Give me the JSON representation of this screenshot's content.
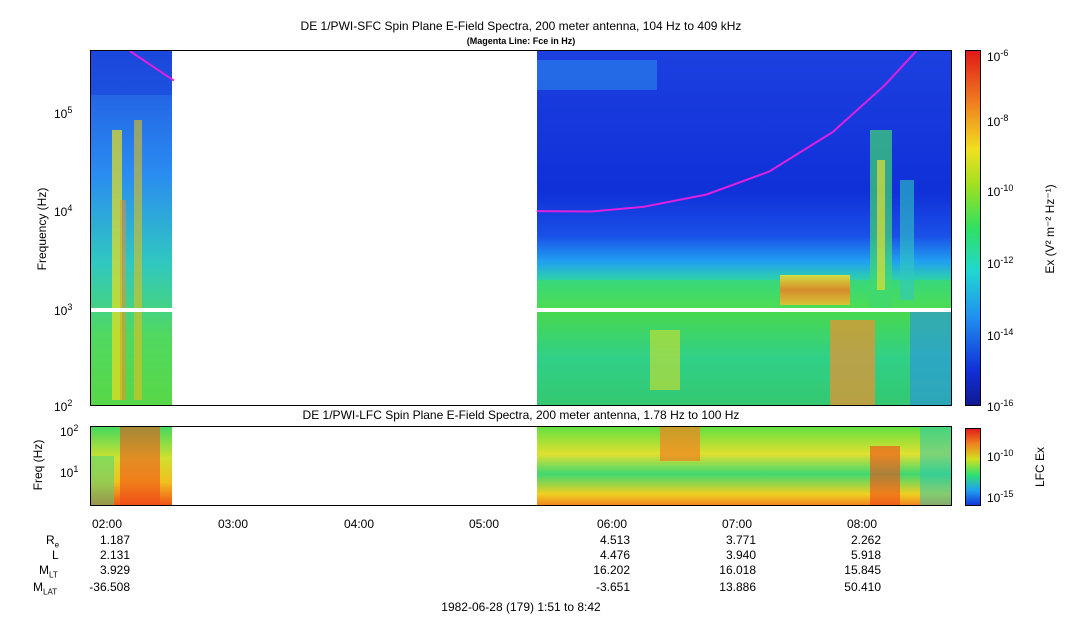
{
  "top_panel": {
    "title": "DE 1/PWI-SFC  Spin Plane E-Field Spectra, 200 meter antenna, 104 Hz to 409 kHz",
    "subtitle": "(Magenta Line: Fce in Hz)",
    "ylabel": "Frequency (Hz)",
    "y_ticks": [
      {
        "base": "10",
        "exp": "2",
        "value": 100
      },
      {
        "base": "10",
        "exp": "3",
        "value": 1000
      },
      {
        "base": "10",
        "exp": "4",
        "value": 10000
      },
      {
        "base": "10",
        "exp": "5",
        "value": 100000
      }
    ],
    "colorbar_label": "Ex (V² m⁻² Hz⁻¹)",
    "colorbar_ticks": [
      {
        "base": "10",
        "exp": "-6"
      },
      {
        "base": "10",
        "exp": "-8"
      },
      {
        "base": "10",
        "exp": "-10"
      },
      {
        "base": "10",
        "exp": "-12"
      },
      {
        "base": "10",
        "exp": "-14"
      },
      {
        "base": "10",
        "exp": "-16"
      }
    ]
  },
  "bottom_panel": {
    "title": "DE 1/PWI-LFC  Spin Plane E-Field Spectra, 200 meter antenna, 1.78 Hz to 100 Hz",
    "ylabel": "Freq (Hz)",
    "y_ticks": [
      {
        "base": "10",
        "exp": "1",
        "value": 10
      },
      {
        "base": "10",
        "exp": "2",
        "value": 100
      }
    ],
    "colorbar_label": "LFC Ex",
    "colorbar_ticks": [
      {
        "base": "10",
        "exp": "-10"
      },
      {
        "base": "10",
        "exp": "-15"
      }
    ]
  },
  "x_ticks": [
    "02:00",
    "03:00",
    "04:00",
    "05:00",
    "06:00",
    "07:00",
    "08:00"
  ],
  "ephemeris": {
    "labels": [
      {
        "main": "R",
        "sub": "e"
      },
      {
        "main": "L",
        "sub": ""
      },
      {
        "main": "M",
        "sub": "LT"
      },
      {
        "main": "M",
        "sub": "LAT"
      }
    ],
    "columns": [
      {
        "time": "02:00",
        "values": [
          "1.187",
          "2.131",
          "3.929",
          "-36.508"
        ]
      },
      {
        "time": "06:00",
        "values": [
          "4.513",
          "4.476",
          "16.202",
          "-3.651"
        ]
      },
      {
        "time": "07:00",
        "values": [
          "3.771",
          "3.940",
          "16.018",
          "13.886"
        ]
      },
      {
        "time": "08:00",
        "values": [
          "2.262",
          "5.918",
          "15.845",
          "50.410"
        ]
      }
    ]
  },
  "footer": "1982-06-28 (179) 1:51 to 8:42",
  "colors": {
    "magenta_line": "#e020e0",
    "background_field": "#1030d0"
  },
  "chart_data": [
    {
      "type": "heatmap",
      "title": "DE 1/PWI-SFC  Spin Plane E-Field Spectra, 200 meter antenna, 104 Hz to 409 kHz",
      "xlabel": "",
      "ylabel": "Frequency (Hz)",
      "x_range": [
        "01:51",
        "08:42"
      ],
      "y_range_hz": [
        100,
        409000
      ],
      "y_scale": "log",
      "colorbar": "Ex (V^2 m^-2 Hz^-1)",
      "colorbar_range": [
        1e-16,
        1e-06
      ],
      "colorbar_scale": "log",
      "data_gap": [
        "02:31",
        "05:24"
      ],
      "magenta_fce_line": {
        "name": "Fce in Hz",
        "points": [
          {
            "t": "02:10",
            "f": 400000
          },
          {
            "t": "02:31",
            "f": 200000
          },
          {
            "t": "05:24",
            "f": 9500
          },
          {
            "t": "05:50",
            "f": 9400
          },
          {
            "t": "06:15",
            "f": 10500
          },
          {
            "t": "06:45",
            "f": 14000
          },
          {
            "t": "07:15",
            "f": 24000
          },
          {
            "t": "07:45",
            "f": 60000
          },
          {
            "t": "08:10",
            "f": 180000
          },
          {
            "t": "08:25",
            "f": 400000
          }
        ]
      }
    },
    {
      "type": "heatmap",
      "title": "DE 1/PWI-LFC  Spin Plane E-Field Spectra, 200 meter antenna, 1.78 Hz to 100 Hz",
      "ylabel": "Freq (Hz)",
      "x_range": [
        "01:51",
        "08:42"
      ],
      "y_range_hz": [
        1.78,
        100
      ],
      "y_scale": "log",
      "colorbar": "LFC Ex",
      "colorbar_ticks": [
        "1e-10",
        "1e-15"
      ],
      "data_gap": [
        "02:31",
        "05:24"
      ]
    }
  ]
}
